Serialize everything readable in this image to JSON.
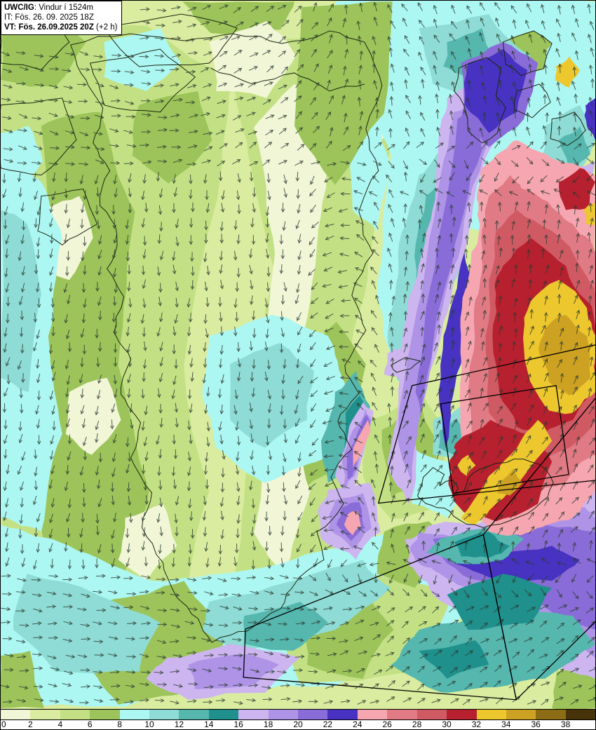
{
  "header": {
    "model": "UWC/IG",
    "model_sep": ": ",
    "variable": "Vindur í 1524m",
    "init_line": "IT: Fös. 26. 09. 2025 18Z",
    "valid_bold": "VT: Fös. 26.09.2025 20Z",
    "valid_suffix": " (+2 h)"
  },
  "colorbar": {
    "tick_labels": [
      "0",
      "2",
      "4",
      "6",
      "8",
      "10",
      "12",
      "14",
      "16",
      "18",
      "20",
      "22",
      "24",
      "26",
      "28",
      "30",
      "32",
      "34",
      "36",
      "38"
    ],
    "colors": [
      "#f1f6d7",
      "#d9ec9f",
      "#c3e184",
      "#9cc45a",
      "#adf7f3",
      "#8edcd5",
      "#56b7af",
      "#1f908c",
      "#cdb5f0",
      "#ae93e6",
      "#8a6cd8",
      "#4732c1",
      "#f6a6b0",
      "#e07a84",
      "#d05a64",
      "#b7202e",
      "#edc72e",
      "#cda122",
      "#8c6d15",
      "#473309"
    ]
  },
  "map_colors": {
    "background": "#d9ec9f",
    "arrow": "#2c3a30",
    "coastline": "#1c2410",
    "domain_box": "#000000",
    "frame": "#000000"
  }
}
